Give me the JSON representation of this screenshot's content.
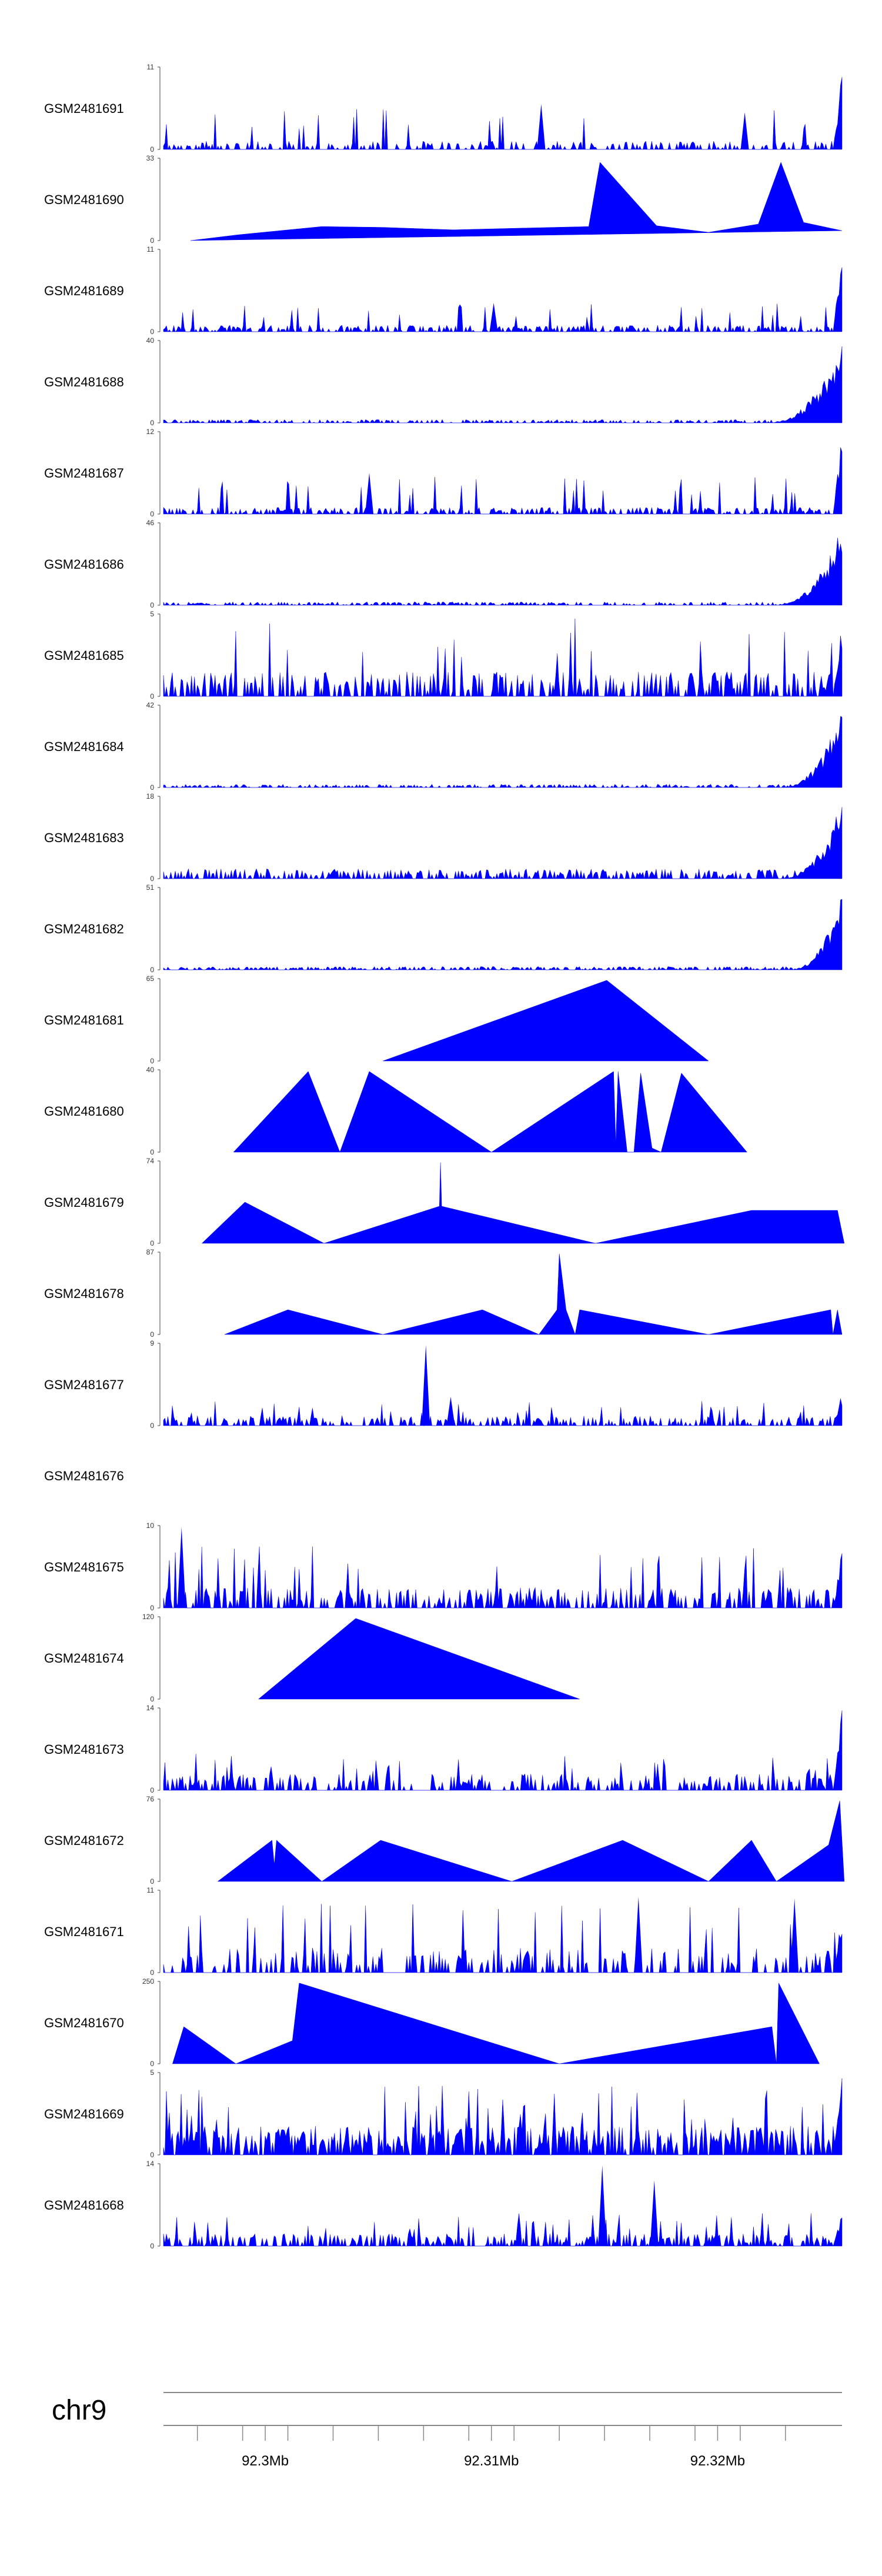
{
  "colors": {
    "fill": "#0000ff",
    "axis": "#444444",
    "text": "#000000"
  },
  "chart_data": {
    "type": "area",
    "title": "",
    "chromosome": "chr9",
    "xlim": [
      92.2955,
      92.3255
    ],
    "x_ticks": [
      92.297,
      92.299,
      92.301,
      92.303,
      92.305,
      92.307,
      92.309,
      92.311,
      92.313,
      92.315,
      92.317,
      92.319,
      92.321,
      92.323
    ],
    "x_tick_labels": [
      {
        "value": 92.3,
        "label": "92.3Mb"
      },
      {
        "value": 92.31,
        "label": "92.31Mb"
      },
      {
        "value": 92.32,
        "label": "92.32Mb"
      }
    ],
    "tracks": [
      {
        "name": "GSM2481691",
        "ymax": 11,
        "ymin": 0,
        "kind": "noise",
        "seed": 11,
        "density": 0.42,
        "base": 0.1,
        "peak": 0.5,
        "edge": 1.0,
        "spikes": [
          [
            92.3122,
            0.55
          ],
          [
            92.3212,
            0.45
          ]
        ]
      },
      {
        "name": "GSM2481690",
        "ymax": 33,
        "ymin": 0,
        "kind": "poly",
        "points": [
          [
            92.2967,
            0
          ],
          [
            92.2988,
            0.07
          ],
          [
            92.3025,
            0.17
          ],
          [
            92.3052,
            0.16
          ],
          [
            92.3083,
            0.13
          ],
          [
            92.3112,
            0.15
          ],
          [
            92.3143,
            0.17
          ],
          [
            92.3148,
            0.95
          ],
          [
            92.3173,
            0.18
          ],
          [
            92.3196,
            0.1
          ],
          [
            92.3218,
            0.2
          ],
          [
            92.3228,
            0.95
          ],
          [
            92.3238,
            0.22
          ],
          [
            92.3255,
            0.12
          ]
        ]
      },
      {
        "name": "GSM2481689",
        "ymax": 11,
        "ymin": 0,
        "kind": "noise",
        "seed": 21,
        "density": 0.55,
        "base": 0.08,
        "peak": 0.35,
        "edge": 1.0,
        "spikes": [
          [
            92.3101,
            0.35
          ]
        ]
      },
      {
        "name": "GSM2481688",
        "ymax": 40,
        "ymin": 0,
        "kind": "rise",
        "seed": 31,
        "density": 0.5,
        "base": 0.04,
        "start": 92.3222,
        "edge": 0.98
      },
      {
        "name": "GSM2481687",
        "ymax": 12,
        "ymin": 0,
        "kind": "noise",
        "seed": 41,
        "density": 0.55,
        "base": 0.08,
        "peak": 0.45,
        "edge": 1.0,
        "spikes": [
          [
            92.3046,
            0.5
          ]
        ]
      },
      {
        "name": "GSM2481686",
        "ymax": 46,
        "ymin": 0,
        "kind": "rise",
        "seed": 51,
        "density": 0.5,
        "base": 0.04,
        "start": 92.3225,
        "edge": 0.96
      },
      {
        "name": "GSM2481685",
        "ymax": 5,
        "ymin": 0,
        "kind": "noise",
        "seed": 61,
        "density": 0.5,
        "base": 0.3,
        "peak": 0.95,
        "edge": 0.95,
        "spikes": []
      },
      {
        "name": "GSM2481684",
        "ymax": 42,
        "ymin": 0,
        "kind": "rise",
        "seed": 71,
        "density": 0.5,
        "base": 0.04,
        "start": 92.3228,
        "edge": 0.95
      },
      {
        "name": "GSM2481683",
        "ymax": 18,
        "ymin": 0,
        "kind": "rise",
        "seed": 81,
        "density": 0.55,
        "base": 0.12,
        "start": 92.3228,
        "edge": 0.95
      },
      {
        "name": "GSM2481682",
        "ymax": 51,
        "ymin": 0,
        "kind": "rise",
        "seed": 91,
        "density": 0.5,
        "base": 0.04,
        "start": 92.3232,
        "edge": 0.95
      },
      {
        "name": "GSM2481681",
        "ymax": 65,
        "ymin": 0,
        "kind": "poly",
        "points": [
          [
            92.3052,
            0
          ],
          [
            92.3151,
            0.98
          ],
          [
            92.3196,
            0
          ]
        ]
      },
      {
        "name": "GSM2481680",
        "ymax": 40,
        "ymin": 0,
        "kind": "poly",
        "points": [
          [
            92.2986,
            0
          ],
          [
            92.3019,
            0.98
          ],
          [
            92.3033,
            0
          ],
          [
            92.3046,
            0.98
          ],
          [
            92.31,
            0
          ],
          [
            92.3154,
            0.98
          ],
          [
            92.3155,
            0.1
          ],
          [
            92.3156,
            0.98
          ],
          [
            92.316,
            0
          ],
          [
            92.3163,
            0
          ],
          [
            92.3166,
            0.96
          ],
          [
            92.3171,
            0.05
          ],
          [
            92.3175,
            0
          ],
          [
            92.3184,
            0.96
          ],
          [
            92.3213,
            0
          ]
        ]
      },
      {
        "name": "GSM2481679",
        "ymax": 74,
        "ymin": 0,
        "kind": "poly",
        "points": [
          [
            92.2972,
            0
          ],
          [
            92.2991,
            0.5
          ],
          [
            92.3026,
            0
          ],
          [
            92.3077,
            0.45
          ],
          [
            92.30775,
            0.98
          ],
          [
            92.3078,
            0.45
          ],
          [
            92.3146,
            0
          ],
          [
            92.3215,
            0.4
          ],
          [
            92.3253,
            0.4
          ],
          [
            92.3256,
            0
          ]
        ]
      },
      {
        "name": "GSM2481678",
        "ymax": 87,
        "ymin": 0,
        "kind": "poly",
        "points": [
          [
            92.2982,
            0
          ],
          [
            92.301,
            0.3
          ],
          [
            92.3052,
            0
          ],
          [
            92.3096,
            0.3
          ],
          [
            92.3121,
            0
          ],
          [
            92.3129,
            0.3
          ],
          [
            92.313,
            0.98
          ],
          [
            92.3133,
            0.3
          ],
          [
            92.3137,
            0
          ],
          [
            92.3139,
            0.3
          ],
          [
            92.3196,
            0
          ],
          [
            92.325,
            0.3
          ],
          [
            92.3251,
            0
          ],
          [
            92.3253,
            0.3
          ],
          [
            92.3255,
            0
          ]
        ]
      },
      {
        "name": "GSM2481677",
        "ymax": 9,
        "ymin": 0,
        "kind": "noise",
        "seed": 101,
        "density": 0.5,
        "base": 0.12,
        "peak": 0.3,
        "edge": 0.4,
        "spikes": [
          [
            92.3071,
            0.98
          ],
          [
            92.3082,
            0.35
          ]
        ]
      },
      {
        "name": "GSM2481676",
        "kind": "empty"
      },
      {
        "name": "GSM2481675",
        "ymax": 10,
        "ymin": 0,
        "kind": "noise",
        "seed": 111,
        "density": 0.5,
        "base": 0.25,
        "peak": 0.75,
        "edge": 0.75,
        "spikes": [
          [
            92.2963,
            0.98
          ]
        ]
      },
      {
        "name": "GSM2481674",
        "ymax": 120,
        "ymin": 0,
        "kind": "poly",
        "points": [
          [
            92.2997,
            0
          ],
          [
            92.304,
            0.98
          ],
          [
            92.3139,
            0
          ]
        ]
      },
      {
        "name": "GSM2481673",
        "ymax": 14,
        "ymin": 0,
        "kind": "noise",
        "seed": 121,
        "density": 0.45,
        "base": 0.2,
        "peak": 0.45,
        "edge": 1.0,
        "spikes": []
      },
      {
        "name": "GSM2481672",
        "ymax": 76,
        "ymin": 0,
        "kind": "poly",
        "points": [
          [
            92.2979,
            0
          ],
          [
            92.3003,
            0.5
          ],
          [
            92.3004,
            0.2
          ],
          [
            92.3005,
            0.5
          ],
          [
            92.3025,
            0
          ],
          [
            92.3051,
            0.5
          ],
          [
            92.3109,
            0
          ],
          [
            92.3158,
            0.5
          ],
          [
            92.3196,
            0
          ],
          [
            92.3215,
            0.5
          ],
          [
            92.3226,
            0
          ],
          [
            92.3252,
            0.5
          ],
          [
            92.3245,
            0
          ],
          [
            92.3254,
            0.98
          ],
          [
            92.3256,
            0
          ]
        ]
      },
      {
        "name": "GSM2481671",
        "ymax": 11,
        "ymin": 0,
        "kind": "noise",
        "seed": 131,
        "density": 0.4,
        "base": 0.3,
        "peak": 0.85,
        "edge": 0.7,
        "spikes": [
          [
            92.3165,
            0.92
          ],
          [
            92.3234,
            0.9
          ]
        ]
      },
      {
        "name": "GSM2481670",
        "ymax": 250,
        "ymin": 0,
        "kind": "poly",
        "points": [
          [
            92.2959,
            0
          ],
          [
            92.2964,
            0.45
          ],
          [
            92.2987,
            0
          ],
          [
            92.3012,
            0.28
          ],
          [
            92.3015,
            0.98
          ],
          [
            92.313,
            0
          ],
          [
            92.3224,
            0.45
          ],
          [
            92.3226,
            0
          ],
          [
            92.3227,
            0.98
          ],
          [
            92.3245,
            0
          ]
        ]
      },
      {
        "name": "GSM2481669",
        "ymax": 5,
        "ymin": 0,
        "kind": "noise",
        "seed": 141,
        "density": 0.7,
        "base": 0.35,
        "peak": 0.85,
        "edge": 0.98,
        "spikes": []
      },
      {
        "name": "GSM2481668",
        "ymax": 14,
        "ymin": 0,
        "kind": "noise",
        "seed": 151,
        "density": 0.55,
        "base": 0.15,
        "peak": 0.4,
        "edge": 0.4,
        "spikes": [
          [
            92.3149,
            0.98
          ],
          [
            92.3172,
            0.8
          ]
        ]
      }
    ]
  }
}
